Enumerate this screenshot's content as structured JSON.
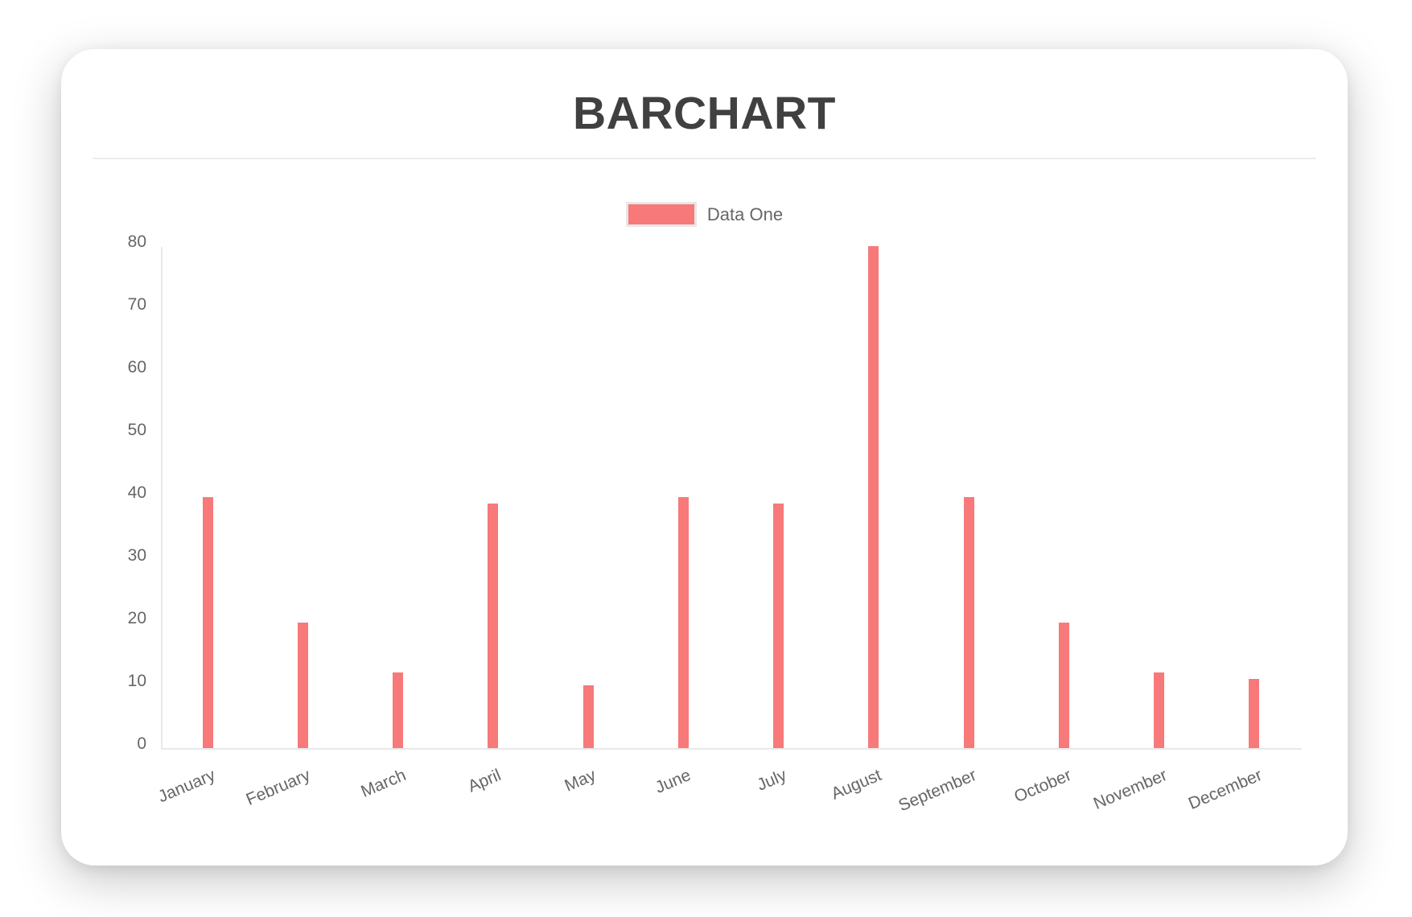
{
  "card": {
    "title": "BARCHART"
  },
  "legend": {
    "items": [
      {
        "label": "Data One",
        "color": "#f87979"
      }
    ]
  },
  "chart_data": {
    "type": "bar",
    "title": "BARCHART",
    "categories": [
      "January",
      "February",
      "March",
      "April",
      "May",
      "June",
      "July",
      "August",
      "September",
      "October",
      "November",
      "December"
    ],
    "series": [
      {
        "name": "Data One",
        "color": "#f87979",
        "values": [
          40,
          20,
          12,
          39,
          10,
          40,
          39,
          80,
          40,
          20,
          12,
          11
        ]
      }
    ],
    "xlabel": "",
    "ylabel": "",
    "ylim": [
      0,
      80
    ],
    "yticks": [
      0,
      10,
      20,
      30,
      40,
      50,
      60,
      70,
      80
    ],
    "grid": false,
    "legend_position": "top"
  },
  "colors": {
    "bar": "#f87979",
    "axis_line": "#e9e9e9",
    "tick_text": "#666666",
    "title_text": "#404040",
    "legend_box_border": "#e7e7e7",
    "divider": "#ededed",
    "card_background": "#ffffff"
  }
}
